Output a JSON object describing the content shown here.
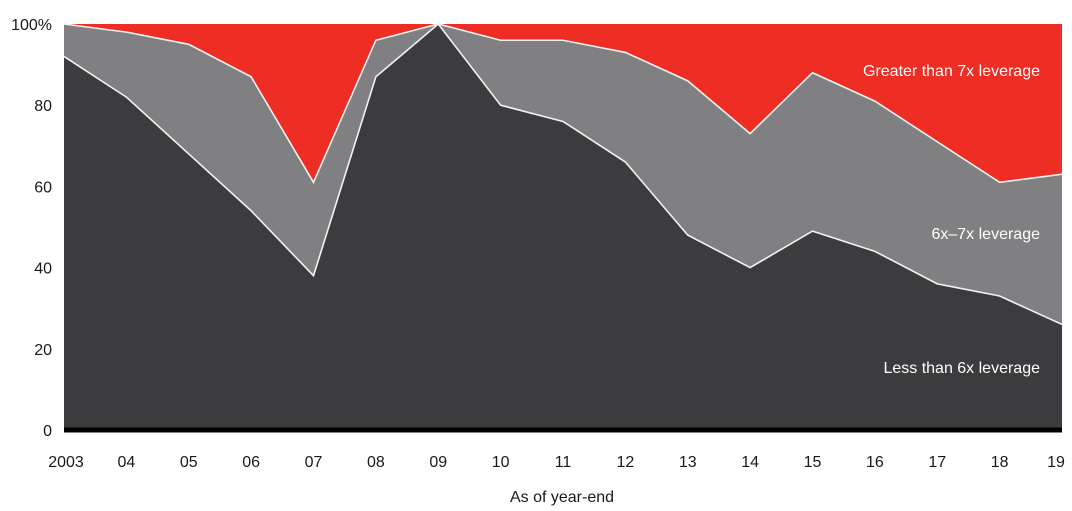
{
  "chart_data": {
    "type": "area",
    "stacked": true,
    "normalized": true,
    "categories": [
      "2003",
      "04",
      "05",
      "06",
      "07",
      "08",
      "09",
      "10",
      "11",
      "12",
      "13",
      "14",
      "15",
      "16",
      "17",
      "18",
      "19"
    ],
    "series": [
      {
        "name": "Less than 6x leverage",
        "color": "#3c3c3e",
        "values": [
          92,
          82,
          68,
          54,
          38,
          87,
          100,
          80,
          76,
          66,
          48,
          40,
          49,
          44,
          36,
          33,
          26
        ]
      },
      {
        "name": "6x–7x leverage",
        "color": "#808083",
        "values": [
          8,
          16,
          27,
          33,
          23,
          9,
          0,
          16,
          20,
          27,
          38,
          33,
          39,
          37,
          35,
          28,
          37
        ]
      },
      {
        "name": "Greater than 7x leverage",
        "color": "#ee2d24",
        "values": [
          0,
          2,
          5,
          13,
          39,
          4,
          0,
          4,
          4,
          7,
          14,
          27,
          12,
          19,
          29,
          39,
          37
        ]
      }
    ],
    "yticks": [
      "0",
      "20",
      "40",
      "60",
      "80",
      "100%"
    ],
    "ytick_values": [
      0,
      20,
      40,
      60,
      80,
      100
    ],
    "ylim": [
      0,
      100
    ],
    "xlabel": "As of year-end",
    "ylabel": "",
    "title": "",
    "grid": false
  }
}
